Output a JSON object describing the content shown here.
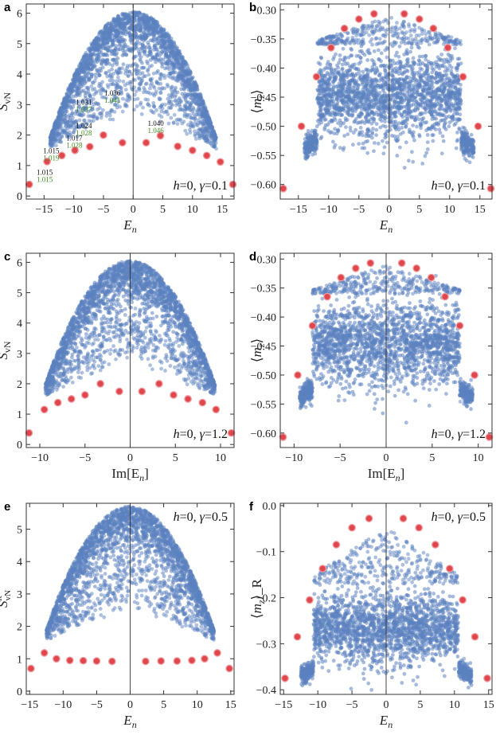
{
  "colors": {
    "bulk": "#5b82c0",
    "special": "#e0474c",
    "special_edge": "#f09a9e",
    "green_text": "#3f8c1e",
    "axis": "#333333"
  },
  "chart_data": [
    {
      "panel": "a",
      "type": "scatter",
      "xlabel": "E_n",
      "ylabel": "S_vN",
      "xlim": [
        -18,
        17
      ],
      "ylim": [
        -0.1,
        6.3
      ],
      "xticks": [
        -15,
        -10,
        -5,
        0,
        5,
        10,
        15
      ],
      "yticks": [
        0,
        1,
        2,
        3,
        4,
        5,
        6
      ],
      "params": "h=0, γ=0.1",
      "params_pos": "bottom-right",
      "bulk_shape": "dome",
      "bulk_half_width": 14,
      "bulk_top": 6.05,
      "bulk_base": 1.55,
      "special_points": [
        [
          -17.5,
          0.38
        ],
        [
          -14.5,
          1.13
        ],
        [
          -12,
          1.33
        ],
        [
          -9.8,
          1.5
        ],
        [
          -7.3,
          1.62
        ],
        [
          -5,
          2.0
        ],
        [
          -1.8,
          1.75
        ],
        [
          2.2,
          1.75
        ],
        [
          4.6,
          1.98
        ],
        [
          7.5,
          1.63
        ],
        [
          10,
          1.5
        ],
        [
          12.4,
          1.33
        ],
        [
          14.7,
          1.12
        ],
        [
          16.8,
          0.38
        ]
      ],
      "annotations": [
        {
          "x": -14.9,
          "y": 0.7,
          "top": "1.015",
          "bottom": "1.015"
        },
        {
          "x": -13.8,
          "y": 1.4,
          "top": "1.015",
          "bottom": "1.019"
        },
        {
          "x": -9.9,
          "y": 1.82,
          "top": "1.017",
          "bottom": "1.028"
        },
        {
          "x": -8.3,
          "y": 2.22,
          "top": "1.024",
          "bottom": "1.028"
        },
        {
          "x": -8.3,
          "y": 3.0,
          "top": "1.031",
          "bottom": "1.037"
        },
        {
          "x": -3.5,
          "y": 3.3,
          "top": "1.036",
          "bottom": "1.041"
        },
        {
          "x": 3.8,
          "y": 2.3,
          "top": "1.040",
          "bottom": "1.046"
        }
      ]
    },
    {
      "panel": "b",
      "type": "scatter",
      "xlabel": "E_n",
      "ylabel": "⟨m_z⟩",
      "xlim": [
        -18,
        17
      ],
      "ylim": [
        -0.625,
        -0.29
      ],
      "xticks": [
        -15,
        -10,
        -5,
        0,
        5,
        10,
        15
      ],
      "yticks": [
        -0.3,
        -0.35,
        -0.4,
        -0.45,
        -0.5,
        -0.55,
        -0.6
      ],
      "params": "h=0, γ=0.1",
      "params_pos": "bottom-right",
      "bulk_shape": "mz",
      "bulk_half_width": 14,
      "bulk_top": -0.36,
      "bulk_base": -0.53,
      "special_points": [
        [
          -17.5,
          -0.607
        ],
        [
          -14.5,
          -0.5
        ],
        [
          -12,
          -0.415
        ],
        [
          -9.6,
          -0.365
        ],
        [
          -7.4,
          -0.332
        ],
        [
          -5,
          -0.316
        ],
        [
          -2.5,
          -0.307
        ],
        [
          2.5,
          -0.307
        ],
        [
          5,
          -0.316
        ],
        [
          7.3,
          -0.332
        ],
        [
          9.7,
          -0.365
        ],
        [
          12.2,
          -0.415
        ],
        [
          14.7,
          -0.5
        ],
        [
          16.8,
          -0.607
        ]
      ]
    },
    {
      "panel": "c",
      "type": "scatter",
      "xlabel": "Im[E_n]",
      "ylabel": "S_vN",
      "xlim": [
        -11.5,
        11.5
      ],
      "ylim": [
        -0.1,
        6.3
      ],
      "xticks": [
        -10,
        -5,
        0,
        5,
        10
      ],
      "yticks": [
        0,
        1,
        2,
        3,
        4,
        5,
        6
      ],
      "params": "h=0, γ=1.2",
      "params_pos": "bottom-right",
      "bulk_shape": "dome",
      "bulk_half_width": 9.4,
      "bulk_top": 6.05,
      "bulk_base": 1.6,
      "special_points": [
        [
          -11.2,
          0.38
        ],
        [
          -9.5,
          1.15
        ],
        [
          -8,
          1.38
        ],
        [
          -6.5,
          1.5
        ],
        [
          -5,
          1.63
        ],
        [
          -3.3,
          2.0
        ],
        [
          -1.2,
          1.75
        ],
        [
          1.3,
          1.75
        ],
        [
          3.2,
          2.0
        ],
        [
          4.8,
          1.63
        ],
        [
          6.4,
          1.5
        ],
        [
          8,
          1.38
        ],
        [
          9.5,
          1.15
        ],
        [
          11.2,
          0.38
        ]
      ]
    },
    {
      "panel": "d",
      "type": "scatter",
      "xlabel": "Im[E_n]",
      "ylabel": "⟨m_z⟩",
      "xlim": [
        -11.5,
        11.5
      ],
      "ylim": [
        -0.625,
        -0.29
      ],
      "xticks": [
        -10,
        -5,
        0,
        5,
        10
      ],
      "yticks": [
        -0.3,
        -0.35,
        -0.4,
        -0.45,
        -0.5,
        -0.55,
        -0.6
      ],
      "params": "h=0, γ=1.2",
      "params_pos": "bottom-right",
      "bulk_shape": "mz",
      "bulk_half_width": 9.4,
      "bulk_top": -0.36,
      "bulk_base": -0.53,
      "special_points": [
        [
          -11.2,
          -0.607
        ],
        [
          -9.6,
          -0.5
        ],
        [
          -8,
          -0.415
        ],
        [
          -6.4,
          -0.365
        ],
        [
          -4.9,
          -0.332
        ],
        [
          -3.3,
          -0.316
        ],
        [
          -1.7,
          -0.307
        ],
        [
          1.7,
          -0.307
        ],
        [
          3.3,
          -0.316
        ],
        [
          4.9,
          -0.332
        ],
        [
          6.4,
          -0.365
        ],
        [
          8,
          -0.415
        ],
        [
          9.6,
          -0.5
        ],
        [
          11.2,
          -0.607
        ]
      ]
    },
    {
      "panel": "e",
      "type": "scatter",
      "xlabel": "E_n",
      "ylabel": "S_vN^R",
      "xlim": [
        -15.5,
        15.5
      ],
      "ylim": [
        -0.1,
        5.8
      ],
      "xticks": [
        -15,
        -10,
        -5,
        0,
        5,
        10,
        15
      ],
      "yticks": [
        0,
        1,
        2,
        3,
        4,
        5
      ],
      "params": "h=0, γ=0.5",
      "params_pos": "top-right",
      "bulk_shape": "dome",
      "bulk_half_width": 12.5,
      "bulk_top": 5.7,
      "bulk_base": 1.55,
      "special_points": [
        [
          -14.8,
          0.7
        ],
        [
          -12.8,
          1.18
        ],
        [
          -11,
          1.0
        ],
        [
          -9,
          0.95
        ],
        [
          -7,
          0.94
        ],
        [
          -5,
          0.93
        ],
        [
          -2.7,
          0.92
        ],
        [
          2.3,
          0.92
        ],
        [
          4.6,
          0.93
        ],
        [
          7,
          0.93
        ],
        [
          9.2,
          0.95
        ],
        [
          11.1,
          1.0
        ],
        [
          13,
          1.18
        ],
        [
          14.8,
          0.7
        ]
      ]
    },
    {
      "panel": "f",
      "type": "scatter",
      "xlabel": "E_n",
      "ylabel": "⟨m_z⟩_R",
      "xlim": [
        -15.5,
        15.5
      ],
      "ylim": [
        -0.41,
        0.005
      ],
      "xticks": [
        -15,
        -10,
        -5,
        0,
        5,
        10,
        15
      ],
      "yticks": [
        0.0,
        -0.1,
        -0.2,
        -0.3,
        -0.4
      ],
      "params": "h=0, γ=0.5",
      "params_pos": "top-right",
      "bulk_shape": "mz",
      "bulk_half_width": 12.5,
      "bulk_top": -0.17,
      "bulk_base": -0.36,
      "special_points": [
        [
          -14.8,
          -0.375
        ],
        [
          -13,
          -0.285
        ],
        [
          -11.2,
          -0.205
        ],
        [
          -9.3,
          -0.137
        ],
        [
          -7.3,
          -0.085
        ],
        [
          -5,
          -0.048
        ],
        [
          -2.5,
          -0.028
        ],
        [
          2.5,
          -0.028
        ],
        [
          4.8,
          -0.048
        ],
        [
          7.2,
          -0.085
        ],
        [
          9.3,
          -0.137
        ],
        [
          11.2,
          -0.205
        ],
        [
          13,
          -0.285
        ],
        [
          14.8,
          -0.375
        ]
      ]
    }
  ]
}
